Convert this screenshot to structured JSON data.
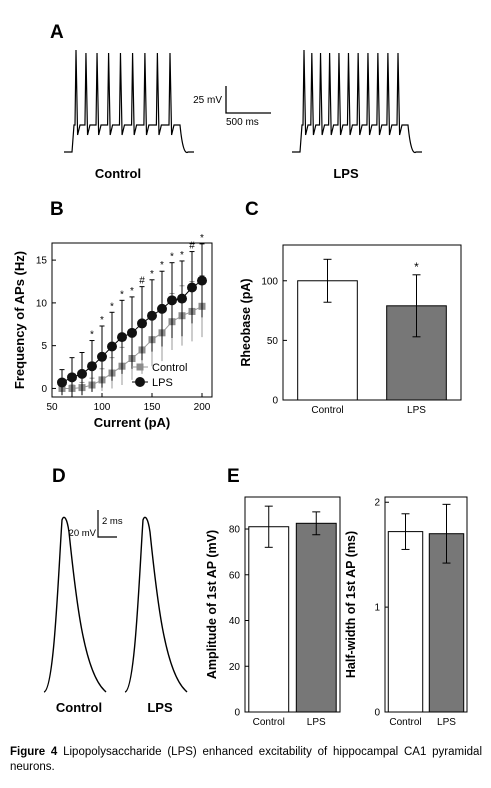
{
  "figure": {
    "caption_label": "Figure 4",
    "caption_text": "Lipopolysaccharide (LPS) enhanced excitability of hippocampal CA1 pyramidal neurons."
  },
  "colors": {
    "control_fill": "#ffffff",
    "lps_fill": "#777777",
    "control_marker": "#8c8c8c",
    "lps_marker": "#111111"
  },
  "chart_data": [
    {
      "panel": "A",
      "type": "line",
      "title": "",
      "trace_labels": [
        "Control",
        "LPS"
      ],
      "spike_counts": [
        9,
        11
      ],
      "scalebar": {
        "voltage": "25 mV",
        "time": "500 ms"
      }
    },
    {
      "panel": "B",
      "type": "scatter",
      "xlabel": "Current (pA)",
      "ylabel": "Frequency of APs (Hz)",
      "xlim": [
        50,
        210
      ],
      "ylim": [
        -1,
        17
      ],
      "xticks": [
        "50",
        "100",
        "150",
        "200"
      ],
      "yticks": [
        "0",
        "5",
        "10",
        "15"
      ],
      "legend_position": "center-right",
      "x": [
        60,
        70,
        80,
        90,
        100,
        110,
        120,
        130,
        140,
        150,
        160,
        170,
        180,
        190,
        200
      ],
      "series": [
        {
          "name": "Control",
          "values": [
            0,
            0,
            0.1,
            0.4,
            1.0,
            1.8,
            2.6,
            3.5,
            4.5,
            5.7,
            6.5,
            7.8,
            8.5,
            9.0,
            9.6
          ],
          "errors": [
            0.3,
            0.4,
            0.6,
            0.8,
            1.3,
            1.8,
            2.2,
            2.5,
            2.8,
            3.1,
            3.3,
            3.3,
            3.5,
            3.5,
            3.6
          ]
        },
        {
          "name": "LPS",
          "values": [
            0.7,
            1.3,
            1.7,
            2.6,
            3.7,
            4.9,
            6.0,
            6.5,
            7.6,
            8.5,
            9.3,
            10.3,
            10.5,
            11.8,
            12.6
          ],
          "errors": [
            1.5,
            2.3,
            2.5,
            3.0,
            3.6,
            4.0,
            4.3,
            4.2,
            4.3,
            4.2,
            4.4,
            4.4,
            4.4,
            4.2,
            4.3
          ]
        }
      ],
      "significance": [
        "",
        "",
        "",
        "*",
        "*",
        "*",
        "*",
        "*",
        "#",
        "*",
        "*",
        "*",
        "*",
        "#",
        "*"
      ]
    },
    {
      "panel": "C",
      "type": "bar",
      "ylabel": "Rheobase (pA)",
      "categories": [
        "Control",
        "LPS"
      ],
      "values": [
        100,
        79
      ],
      "errors": [
        18,
        26
      ],
      "ylim": [
        0,
        130
      ],
      "yticks": [
        "0",
        "50",
        "100"
      ],
      "significance": [
        "",
        "*"
      ]
    },
    {
      "panel": "D",
      "type": "line",
      "trace_labels": [
        "Control",
        "LPS"
      ],
      "scalebar": {
        "voltage": "20 mV",
        "time": "2 ms"
      }
    },
    {
      "panel": "E",
      "type": "bar",
      "ylabel": "Amplitude of 1st AP (mV)",
      "categories": [
        "Control",
        "LPS"
      ],
      "values": [
        81,
        82.5
      ],
      "errors": [
        9,
        5
      ],
      "ylim": [
        0,
        94
      ],
      "yticks": [
        "0",
        "20",
        "40",
        "60",
        "80"
      ]
    },
    {
      "panel": "E",
      "type": "bar",
      "ylabel": "Half-width of 1st AP (ms)",
      "categories": [
        "Control",
        "LPS"
      ],
      "values": [
        1.72,
        1.7
      ],
      "errors": [
        0.17,
        0.28
      ],
      "ylim": [
        0,
        2.05
      ],
      "yticks": [
        "0",
        "1",
        "2"
      ]
    }
  ],
  "panel_letters": [
    "A",
    "B",
    "C",
    "D",
    "E"
  ]
}
